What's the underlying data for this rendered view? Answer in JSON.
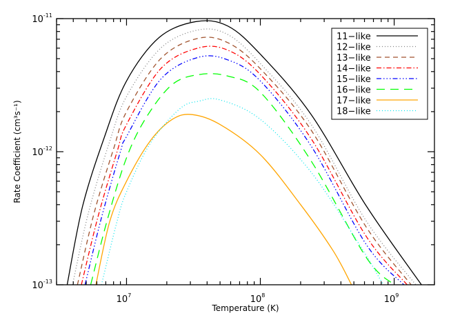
{
  "chart_data": {
    "type": "line",
    "title": "",
    "xlabel": "Temperature (K)",
    "ylabel": "Rate Coefficient (cm³s⁻¹)",
    "xscale": "log",
    "yscale": "log",
    "xlim": [
      3000000.0,
      2000000000.0
    ],
    "ylim": [
      1e-13,
      1e-11
    ],
    "x_tick_labels": [
      {
        "value": 10000000.0,
        "base": "10",
        "exp": "7"
      },
      {
        "value": 100000000.0,
        "base": "10",
        "exp": "8"
      },
      {
        "value": 1000000000.0,
        "base": "10",
        "exp": "9"
      }
    ],
    "y_tick_labels": [
      {
        "value": 1e-11,
        "base": "10",
        "exp": "-11"
      },
      {
        "value": 1e-12,
        "base": "10",
        "exp": "-12"
      },
      {
        "value": 1e-13,
        "base": "10",
        "exp": "-13"
      }
    ],
    "grid": false,
    "legend_position": "upper right",
    "series": [
      {
        "name": "11-like",
        "color": "#000000",
        "dash": "solid",
        "points": [
          [
            3600000.0,
            1e-13
          ],
          [
            4700000.0,
            3.9e-13
          ],
          [
            6800000.0,
            1.27e-12
          ],
          [
            10000000.0,
            3.4e-12
          ],
          [
            17500000.0,
            7.2e-12
          ],
          [
            33000000.0,
            9.5e-12
          ],
          [
            57000000.0,
            8.8e-12
          ],
          [
            100000000.0,
            5.4e-12
          ],
          [
            240000000.0,
            1.9e-12
          ],
          [
            620000000.0,
            3.9e-13
          ],
          [
            1600000000.0,
            1e-13
          ]
        ]
      },
      {
        "name": "12-like",
        "color": "#808080",
        "dash": "dotted",
        "points": [
          [
            3950000.0,
            1e-13
          ],
          [
            5200000.0,
            3.5e-13
          ],
          [
            7500000.0,
            1.2e-12
          ],
          [
            10000000.0,
            2.6e-12
          ],
          [
            18000000.0,
            6e-12
          ],
          [
            34000000.0,
            8.2e-12
          ],
          [
            57000000.0,
            7.6e-12
          ],
          [
            100000000.0,
            4.6e-12
          ],
          [
            240000000.0,
            1.6e-12
          ],
          [
            620000000.0,
            3e-13
          ],
          [
            1450000000.0,
            1e-13
          ]
        ]
      },
      {
        "name": "13-like",
        "color": "#a0522d",
        "dash": "dashed",
        "points": [
          [
            4300000.0,
            1e-13
          ],
          [
            5700000.0,
            3.4e-13
          ],
          [
            8000000.0,
            1.05e-12
          ],
          [
            10000000.0,
            2e-12
          ],
          [
            18000000.0,
            5e-12
          ],
          [
            34000000.0,
            7.1e-12
          ],
          [
            57000000.0,
            6.6e-12
          ],
          [
            100000000.0,
            4.2e-12
          ],
          [
            240000000.0,
            1.45e-12
          ],
          [
            620000000.0,
            2.7e-13
          ],
          [
            1340000000.0,
            1e-13
          ]
        ]
      },
      {
        "name": "14-like",
        "color": "#ff0000",
        "dash": "dash-dot",
        "points": [
          [
            4600000.0,
            1e-13
          ],
          [
            6100000.0,
            3.2e-13
          ],
          [
            8500000.0,
            1e-12
          ],
          [
            10000000.0,
            1.6e-12
          ],
          [
            18000000.0,
            4.2e-12
          ],
          [
            34000000.0,
            6e-12
          ],
          [
            57000000.0,
            5.8e-12
          ],
          [
            100000000.0,
            3.8e-12
          ],
          [
            240000000.0,
            1.25e-12
          ],
          [
            620000000.0,
            2.3e-13
          ],
          [
            1250000000.0,
            1e-13
          ]
        ]
      },
      {
        "name": "15-like",
        "color": "#0000ff",
        "dash": "dash-dot-dot-dot",
        "points": [
          [
            4900000.0,
            1e-13
          ],
          [
            6500000.0,
            3.2e-13
          ],
          [
            9000000.0,
            1e-12
          ],
          [
            10000000.0,
            1.3e-12
          ],
          [
            18000000.0,
            3.5e-12
          ],
          [
            34000000.0,
            5.1e-12
          ],
          [
            57000000.0,
            4.9e-12
          ],
          [
            100000000.0,
            3.4e-12
          ],
          [
            240000000.0,
            1.1e-12
          ],
          [
            620000000.0,
            2e-13
          ],
          [
            1180000000.0,
            1e-13
          ]
        ]
      },
      {
        "name": "16-like",
        "color": "#00ff00",
        "dash": "long-dash",
        "points": [
          [
            5400000.0,
            1e-13
          ],
          [
            7200000.0,
            3.1e-13
          ],
          [
            10000000.0,
            9e-13
          ],
          [
            14000000.0,
            1.8e-12
          ],
          [
            22000000.0,
            3.2e-12
          ],
          [
            35000000.0,
            3.8e-12
          ],
          [
            57000000.0,
            3.7e-12
          ],
          [
            100000000.0,
            2.8e-12
          ],
          [
            240000000.0,
            8.5e-13
          ],
          [
            620000000.0,
            1.6e-13
          ],
          [
            1000000000.0,
            1e-13
          ]
        ]
      },
      {
        "name": "17-like",
        "color": "#ffa500",
        "dash": "solid",
        "points": [
          [
            5900000.0,
            1e-13
          ],
          [
            7500000.0,
            3e-13
          ],
          [
            10000000.0,
            6e-13
          ],
          [
            15000000.0,
            1.2e-12
          ],
          [
            22000000.0,
            1.75e-12
          ],
          [
            31000000.0,
            1.9e-12
          ],
          [
            50000000.0,
            1.6e-12
          ],
          [
            100000000.0,
            9.5e-13
          ],
          [
            200000000.0,
            4e-13
          ],
          [
            350000000.0,
            1.8e-13
          ],
          [
            480000000.0,
            1e-13
          ]
        ]
      },
      {
        "name": "18-like",
        "color": "#00e5ee",
        "dash": "dotted",
        "points": [
          [
            6500000.0,
            1e-13
          ],
          [
            8500000.0,
            3e-13
          ],
          [
            10000000.0,
            5e-13
          ],
          [
            15000000.0,
            1.15e-12
          ],
          [
            25000000.0,
            2.1e-12
          ],
          [
            35000000.0,
            2.4e-12
          ],
          [
            50000000.0,
            2.45e-12
          ],
          [
            100000000.0,
            1.75e-12
          ],
          [
            240000000.0,
            7e-13
          ],
          [
            550000000.0,
            2e-13
          ],
          [
            830000000.0,
            1e-13
          ]
        ]
      }
    ]
  }
}
